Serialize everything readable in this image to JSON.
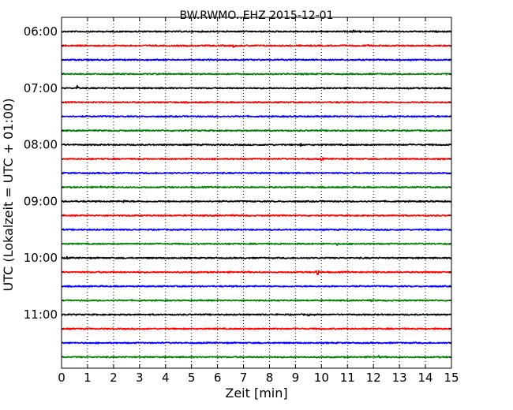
{
  "chart_data": {
    "type": "line",
    "title": "BW.RWMO..EHZ 2015-12-01",
    "xlabel": "Zeit  [min]",
    "ylabel": "UTC (Lokalzeit = UTC + 01:00)",
    "xlim": [
      0,
      15
    ],
    "x_ticks": [
      "0",
      "1",
      "2",
      "3",
      "4",
      "5",
      "6",
      "7",
      "8",
      "9",
      "10",
      "11",
      "12",
      "13",
      "14",
      "15"
    ],
    "y_tick_labels": [
      "06:00",
      "07:00",
      "08:00",
      "09:00",
      "10:00",
      "11:00"
    ],
    "grid": "vertical dotted lines at each minute",
    "color_cycle": [
      "#000000",
      "#ff0000",
      "#0000ff",
      "#008000"
    ],
    "trace_count": 24,
    "trace_interval_minutes": 15,
    "first_trace_start": "06:00",
    "events": [
      {
        "trace": 0,
        "t": 11.2,
        "amp": 0.3
      },
      {
        "trace": 0,
        "t": 11.5,
        "amp": 0.2
      },
      {
        "trace": 1,
        "t": 6.6,
        "amp": 0.3
      },
      {
        "trace": 1,
        "t": 11.8,
        "amp": 0.2
      },
      {
        "trace": 2,
        "t": 9.0,
        "amp": 0.25
      },
      {
        "trace": 3,
        "t": 14.8,
        "amp": 0.15
      },
      {
        "trace": 4,
        "t": 0.6,
        "amp": 0.35
      },
      {
        "trace": 4,
        "t": 13.3,
        "amp": 0.2
      },
      {
        "trace": 4,
        "t": 14.5,
        "amp": 0.2
      },
      {
        "trace": 5,
        "t": 10.7,
        "amp": 0.15
      },
      {
        "trace": 7,
        "t": 7.8,
        "amp": 0.15
      },
      {
        "trace": 8,
        "t": 9.2,
        "amp": 0.2
      },
      {
        "trace": 8,
        "t": 13.4,
        "amp": 0.15
      },
      {
        "trace": 9,
        "t": 10.0,
        "amp": 0.35
      },
      {
        "trace": 11,
        "t": 1.5,
        "amp": 0.2
      },
      {
        "trace": 12,
        "t": 2.4,
        "amp": 0.25
      },
      {
        "trace": 12,
        "t": 10.0,
        "amp": 0.15
      },
      {
        "trace": 13,
        "t": 6.6,
        "amp": 0.15
      },
      {
        "trace": 15,
        "t": 10.6,
        "amp": 0.2
      },
      {
        "trace": 16,
        "t": 8.0,
        "amp": 0.2
      },
      {
        "trace": 16,
        "t": 0.2,
        "amp": 0.2
      },
      {
        "trace": 17,
        "t": 9.8,
        "amp": 0.8
      },
      {
        "trace": 17,
        "t": 12.1,
        "amp": 0.2
      },
      {
        "trace": 18,
        "t": 11.2,
        "amp": 0.25
      },
      {
        "trace": 19,
        "t": 11.9,
        "amp": 0.2
      },
      {
        "trace": 20,
        "t": 9.5,
        "amp": 0.2
      },
      {
        "trace": 21,
        "t": 8.3,
        "amp": 0.15
      },
      {
        "trace": 23,
        "t": 12.2,
        "amp": 0.2
      }
    ]
  }
}
